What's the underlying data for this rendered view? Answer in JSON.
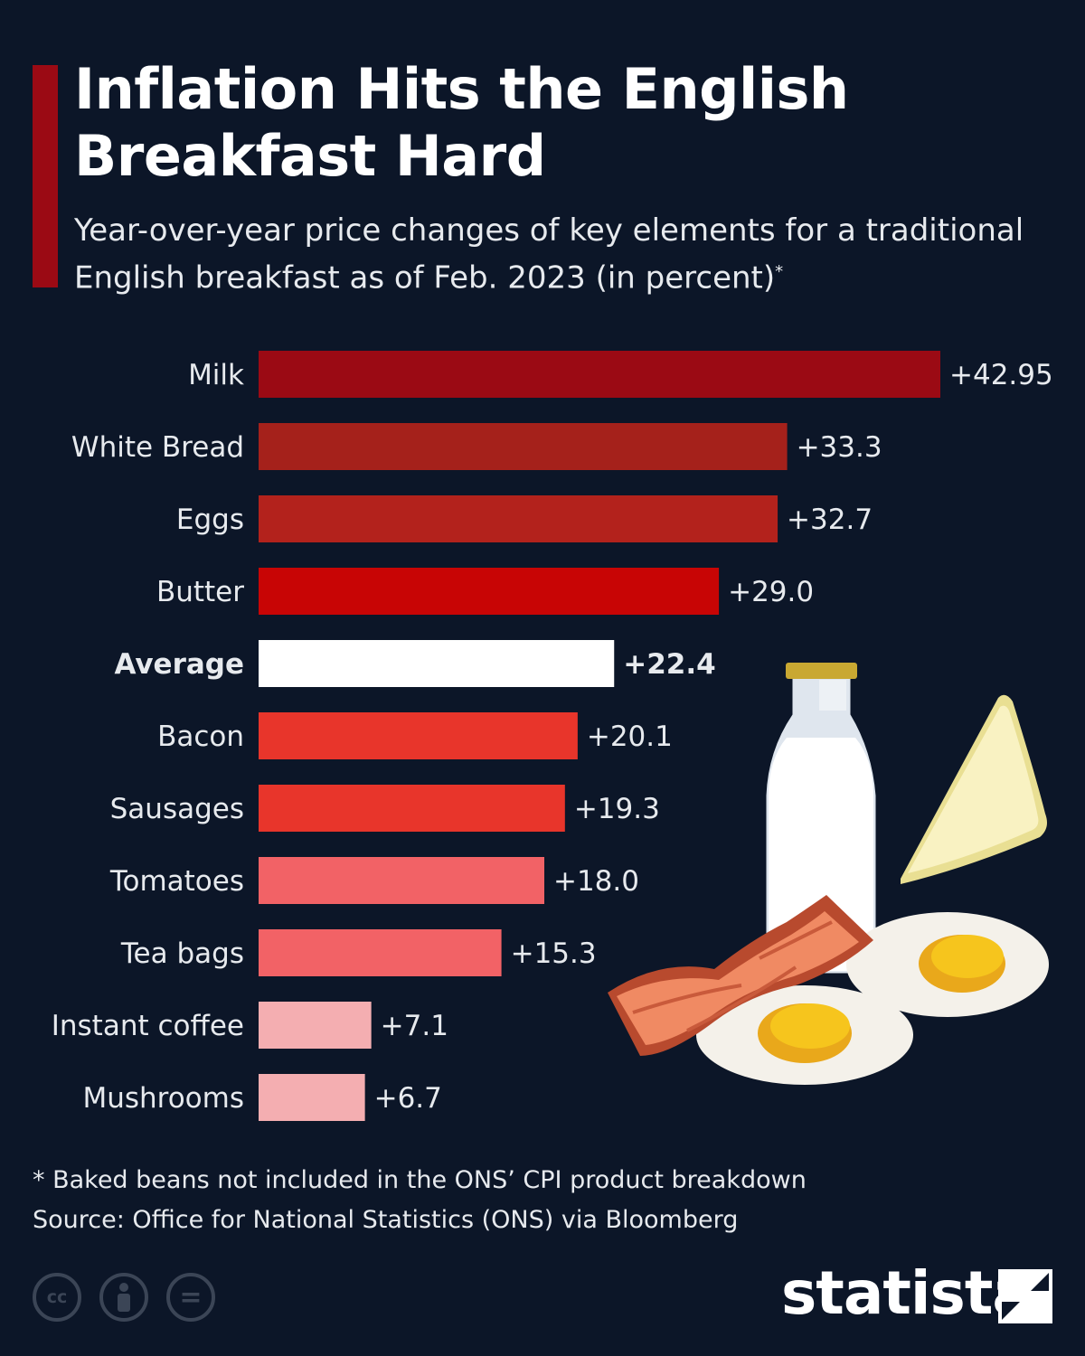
{
  "title": "Inflation Hits the English Breakfast Hard",
  "subtitle": "Year-over-year price changes of key elements for a traditional English breakfast as of Feb. 2023 (in percent)",
  "subtitle_note_marker": "*",
  "footnote": "* Baked beans not included in the ONS’ CPI product breakdown",
  "source": "Source: Office for National Statistics (ONS) via Bloomberg",
  "brand": "statista",
  "license_icons": [
    "cc-icon",
    "by-icon",
    "nd-icon"
  ],
  "colors": {
    "background": "#0c1628",
    "accent": "#9b0a14",
    "text": "#ffffff"
  },
  "illustration": "milk-bottle-toast-bacon-eggs",
  "chart_data": {
    "type": "bar",
    "orientation": "horizontal",
    "categories": [
      "Milk",
      "White Bread",
      "Eggs",
      "Butter",
      "Average",
      "Bacon",
      "Sausages",
      "Tomatoes",
      "Tea bags",
      "Instant coffee",
      "Mushrooms"
    ],
    "values": [
      42.95,
      33.3,
      32.7,
      29.0,
      22.4,
      20.1,
      19.3,
      18.0,
      15.3,
      7.1,
      6.7
    ],
    "labels": [
      "+42.95",
      "+33.3",
      "+32.7",
      "+29.0",
      "+22.4",
      "+20.1",
      "+19.3",
      "+18.0",
      "+15.3",
      "+7.1",
      "+6.7"
    ],
    "bar_colors": [
      "#9b0a14",
      "#a5211b",
      "#b3221c",
      "#c80505",
      "#ffffff",
      "#e8352b",
      "#e8352b",
      "#f26266",
      "#f26266",
      "#f4aeb1",
      "#f4aeb1"
    ],
    "highlight": "Average",
    "xlim": [
      0,
      42.95
    ],
    "grid": false,
    "legend": "none"
  }
}
